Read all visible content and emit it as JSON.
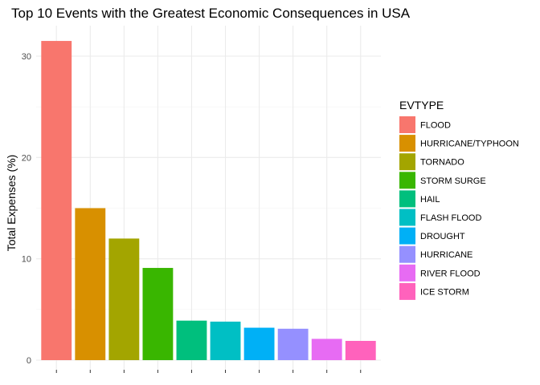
{
  "chart_data": {
    "type": "bar",
    "title": "Top 10 Events with the Greatest Economic Consequences in USA",
    "xlabel": "",
    "ylabel": "Total Expenses (%)",
    "ylim": [
      0,
      33
    ],
    "yticks": [
      0,
      10,
      20,
      30
    ],
    "grid": true,
    "legend": {
      "title": "EVTYPE",
      "position": "right"
    },
    "categories": [
      "FLOOD",
      "HURRICANE/TYPHOON",
      "TORNADO",
      "STORM SURGE",
      "HAIL",
      "FLASH FLOOD",
      "DROUGHT",
      "HURRICANE",
      "RIVER FLOOD",
      "ICE STORM"
    ],
    "values": [
      31.5,
      15.0,
      12.0,
      9.1,
      3.9,
      3.8,
      3.2,
      3.1,
      2.1,
      1.9
    ],
    "colors": [
      "#F8766D",
      "#D89000",
      "#A3A500",
      "#39B600",
      "#00BF7D",
      "#00BFC4",
      "#00B0F6",
      "#9590FF",
      "#E76BF3",
      "#FF62BC"
    ]
  }
}
